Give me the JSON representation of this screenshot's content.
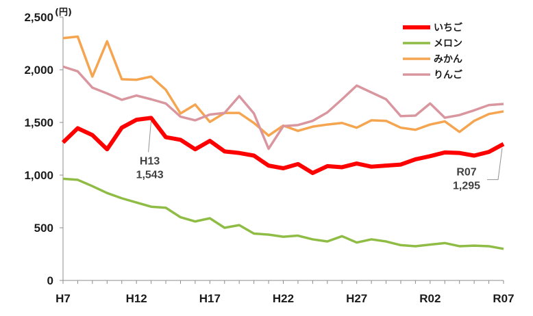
{
  "chart_data": {
    "type": "line",
    "unit": "(円)",
    "ylim": [
      0,
      2500
    ],
    "yticks": [
      {
        "value": 0,
        "label": "0"
      },
      {
        "value": 500,
        "label": "500"
      },
      {
        "value": 1000,
        "label": "1,000"
      },
      {
        "value": 1500,
        "label": "1,500"
      },
      {
        "value": 2000,
        "label": "2,000"
      },
      {
        "value": 2500,
        "label": "2,500"
      }
    ],
    "x": [
      "H7",
      "H8",
      "H9",
      "H10",
      "H11",
      "H12",
      "H13",
      "H14",
      "H15",
      "H16",
      "H17",
      "H18",
      "H19",
      "H20",
      "H21",
      "H22",
      "H23",
      "H24",
      "H25",
      "H26",
      "H27",
      "H28",
      "H29",
      "H30",
      "R01",
      "R02",
      "R03",
      "R04",
      "R05",
      "R06",
      "R07"
    ],
    "xtick_labels": [
      {
        "index": 0,
        "label": "H7"
      },
      {
        "index": 5,
        "label": "H12"
      },
      {
        "index": 10,
        "label": "H17"
      },
      {
        "index": 15,
        "label": "H22"
      },
      {
        "index": 20,
        "label": "H27"
      },
      {
        "index": 25,
        "label": "R02"
      },
      {
        "index": 30,
        "label": "R07"
      }
    ],
    "legend_position": "top-right",
    "series": [
      {
        "name": "いちご",
        "color": "#ff0000",
        "values": [
          1310,
          1445,
          1380,
          1245,
          1450,
          1525,
          1543,
          1360,
          1335,
          1245,
          1325,
          1225,
          1210,
          1185,
          1090,
          1065,
          1105,
          1020,
          1085,
          1075,
          1110,
          1080,
          1090,
          1100,
          1150,
          1180,
          1215,
          1210,
          1185,
          1220,
          1295
        ]
      },
      {
        "name": "メロン",
        "color": "#8fbc45",
        "values": [
          965,
          955,
          895,
          830,
          780,
          740,
          700,
          690,
          600,
          560,
          590,
          500,
          525,
          445,
          435,
          415,
          425,
          390,
          370,
          420,
          360,
          390,
          370,
          335,
          325,
          340,
          355,
          325,
          330,
          325,
          300
        ]
      },
      {
        "name": "みかん",
        "color": "#f5a44f",
        "values": [
          2300,
          2315,
          1935,
          2270,
          1910,
          1905,
          1935,
          1810,
          1585,
          1670,
          1505,
          1590,
          1590,
          1495,
          1375,
          1470,
          1420,
          1460,
          1480,
          1495,
          1450,
          1520,
          1515,
          1450,
          1430,
          1480,
          1510,
          1410,
          1515,
          1580,
          1605
        ]
      },
      {
        "name": "りんご",
        "color": "#d9969f",
        "values": [
          2030,
          1985,
          1830,
          1775,
          1715,
          1755,
          1720,
          1680,
          1555,
          1520,
          1575,
          1590,
          1750,
          1585,
          1250,
          1465,
          1475,
          1515,
          1595,
          1720,
          1850,
          1785,
          1720,
          1560,
          1565,
          1680,
          1545,
          1570,
          1615,
          1665,
          1675
        ]
      }
    ],
    "annotations": [
      {
        "series": "いちご",
        "index": 6,
        "line1": "H13",
        "line2": "1,543"
      },
      {
        "series": "いちご",
        "index": 30,
        "line1": "R07",
        "line2": "1,295"
      }
    ]
  }
}
